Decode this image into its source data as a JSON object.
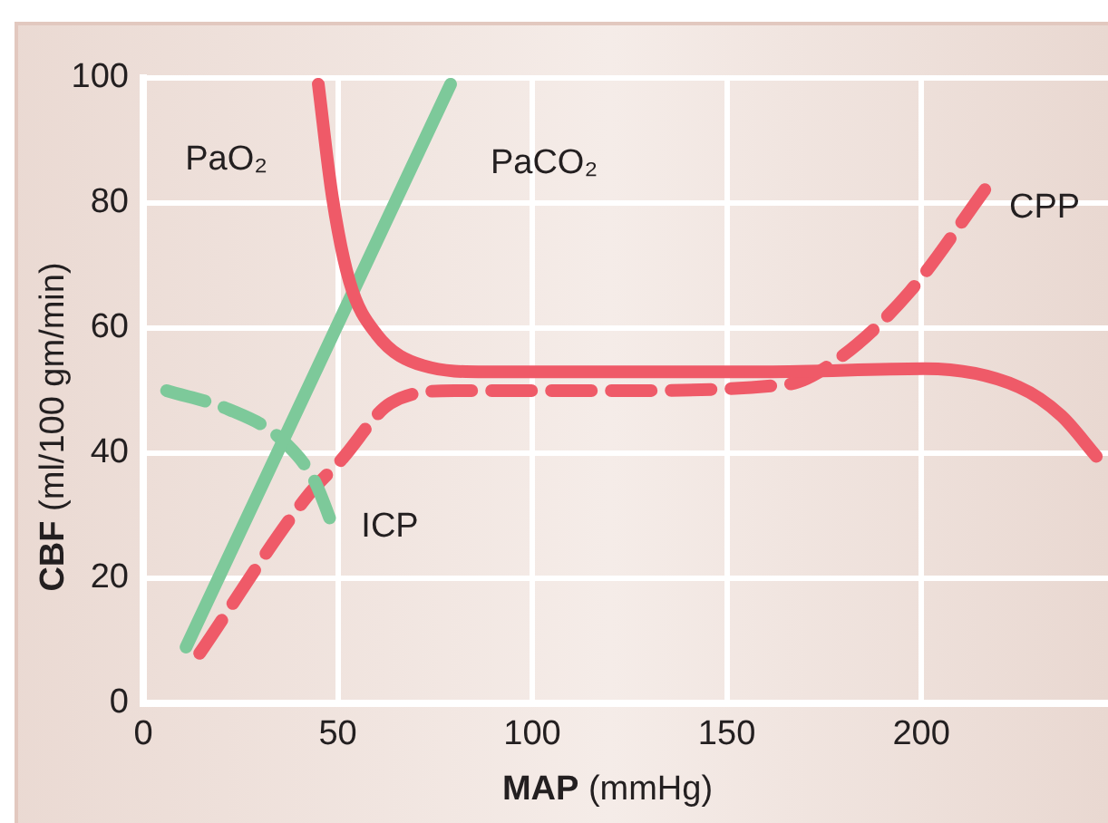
{
  "chart_data": {
    "type": "line",
    "xlabel": "MAP (mmHg)",
    "ylabel": "CBF (ml/100 gm/min)",
    "xlim": [
      0,
      248
    ],
    "ylim": [
      0,
      100
    ],
    "xticks": [
      0,
      50,
      100,
      150,
      200
    ],
    "yticks": [
      0,
      20,
      40,
      60,
      80,
      100
    ],
    "grid": true,
    "legend": false,
    "marker": "none",
    "series": [
      {
        "name": "PaO₂",
        "color": "#ef5a68",
        "line_style": "solid",
        "x": [
          45,
          48.6,
          53,
          60,
          72,
          88,
          120,
          160,
          201,
          225,
          236,
          245
        ],
        "values": [
          99,
          81,
          67.5,
          59,
          54,
          53,
          53,
          53,
          53.5,
          50.6,
          46,
          39.5
        ]
      },
      {
        "name": "PaCO₂",
        "color": "#7dc99a",
        "line_style": "solid",
        "x": [
          11,
          79
        ],
        "values": [
          9,
          99
        ]
      },
      {
        "name": "ICP",
        "color": "#7dc99a",
        "line_style": "dashed",
        "x": [
          6,
          22,
          35,
          44,
          49.5
        ],
        "values": [
          50,
          47,
          42.5,
          35.6,
          27
        ]
      },
      {
        "name": "CPP",
        "color": "#ef5a68",
        "line_style": "dashed",
        "x": [
          14.5,
          42,
          51,
          63.6,
          80,
          120,
          165.5,
          179.6,
          197,
          217
        ],
        "values": [
          8,
          33,
          39,
          48,
          50,
          50,
          51,
          55.5,
          65.8,
          82.7
        ]
      }
    ]
  }
}
